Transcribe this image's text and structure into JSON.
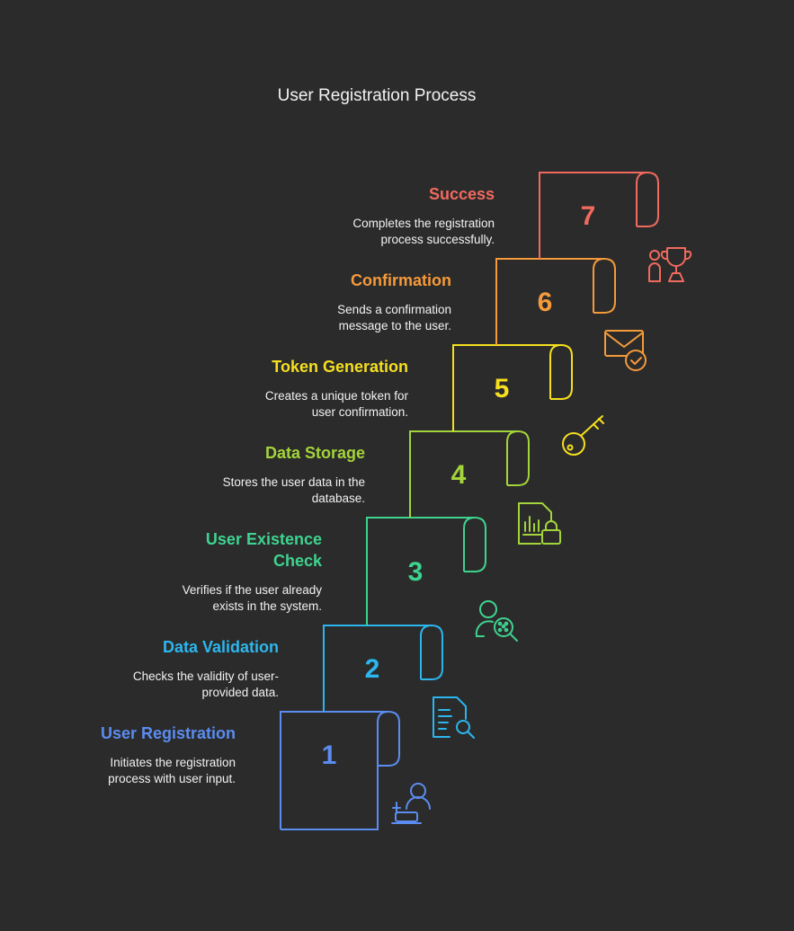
{
  "title": "User Registration Process",
  "steps": [
    {
      "number": "1",
      "title": "User Registration",
      "description": "Initiates the registration process with user input.",
      "description_lines": [
        "Initiates the registration",
        "process with user input."
      ],
      "color": "#5b8cf0",
      "icon": "user-laptop-icon"
    },
    {
      "number": "2",
      "title": "Data Validation",
      "description": "Checks the validity of user-provided data.",
      "description_lines": [
        "Checks the validity of user-",
        "provided data."
      ],
      "color": "#2cb6ee",
      "icon": "document-search-icon"
    },
    {
      "number": "3",
      "title": "User Existence Check",
      "title_lines": [
        "User Existence",
        "Check"
      ],
      "description": "Verifies if the user already exists in the system.",
      "description_lines": [
        "Verifies if the user already",
        "exists in the system."
      ],
      "color": "#3ed38f",
      "icon": "user-search-icon"
    },
    {
      "number": "4",
      "title": "Data Storage",
      "description": "Stores the user data in the database.",
      "description_lines": [
        "Stores the user data in the",
        "database."
      ],
      "color": "#a3d43a",
      "icon": "secure-data-file-icon"
    },
    {
      "number": "5",
      "title": "Token Generation",
      "description": "Creates a unique token for user confirmation.",
      "description_lines": [
        "Creates a unique token for",
        "user confirmation."
      ],
      "color": "#f5df1e",
      "icon": "key-icon"
    },
    {
      "number": "6",
      "title": "Confirmation",
      "description": "Sends a confirmation message to the user.",
      "description_lines": [
        "Sends a confirmation",
        "message to the user."
      ],
      "color": "#f59a3a",
      "icon": "mail-check-icon"
    },
    {
      "number": "7",
      "title": "Success",
      "description": "Completes the registration process successfully.",
      "description_lines": [
        "Completes the registration",
        "process successfully."
      ],
      "color": "#f06a5e",
      "icon": "trophy-user-icon"
    }
  ]
}
